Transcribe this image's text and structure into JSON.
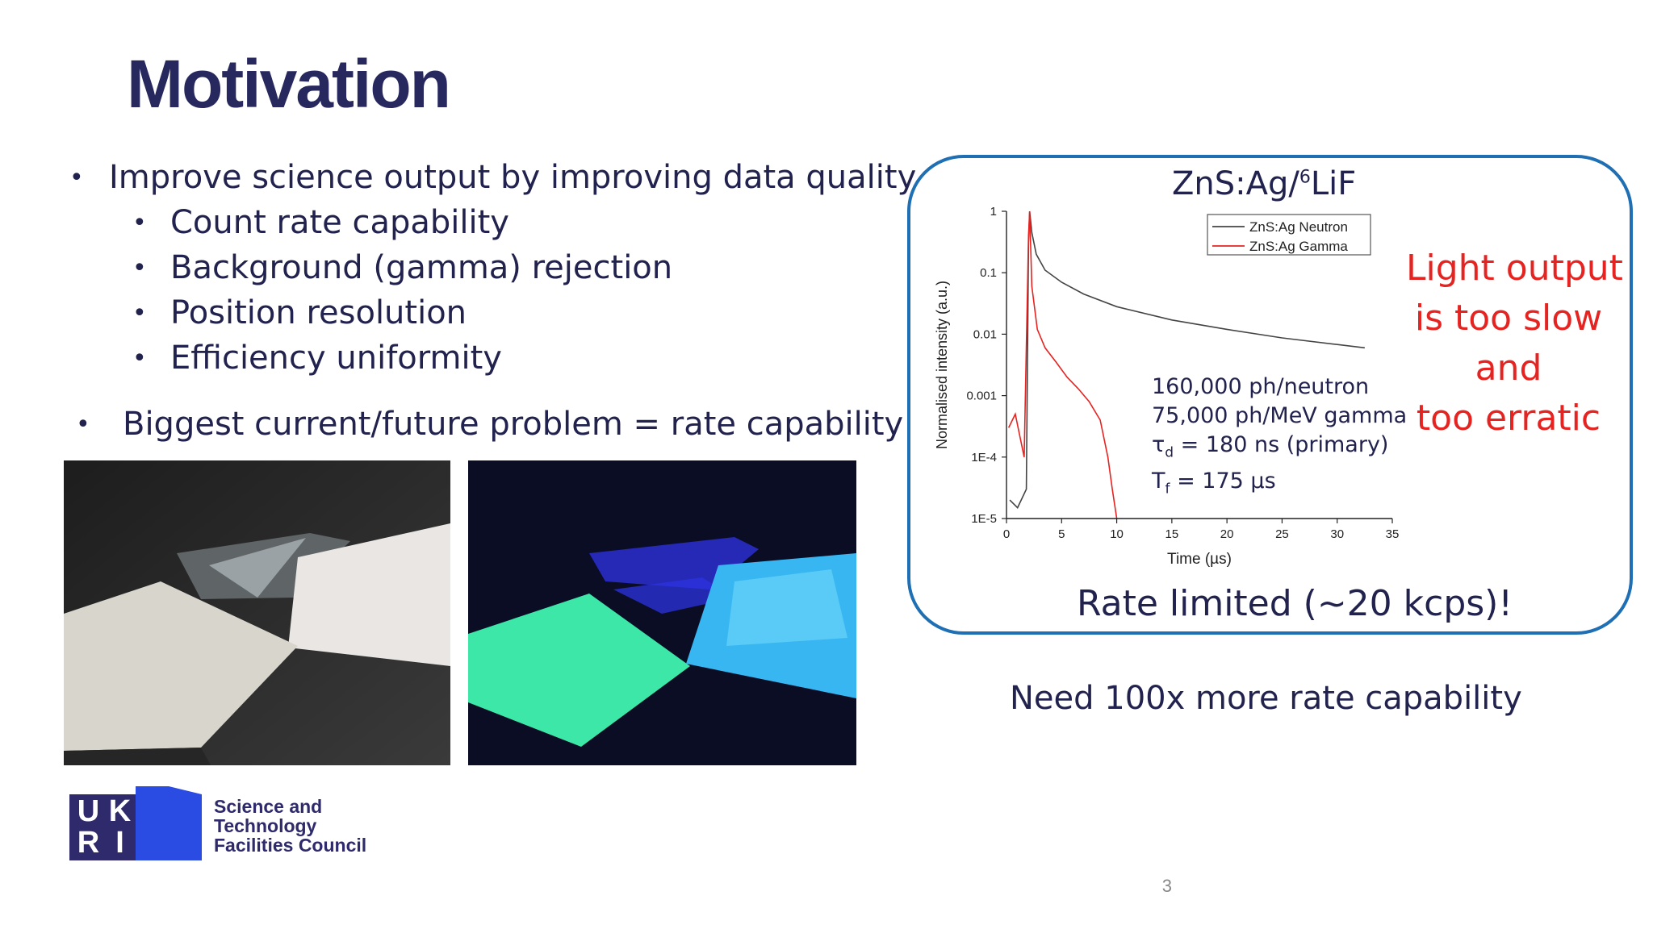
{
  "slide": {
    "title": "Motivation",
    "bullets": [
      "Improve science output by improving data quality",
      "Count rate capability",
      "Background (gamma) rejection",
      "Position resolution",
      "Efficiency uniformity",
      "Biggest current/future problem = rate capability"
    ],
    "bullet_glyph": "•",
    "chart_title": "ZnS:Ag/",
    "chart_title_sup": "6",
    "chart_title_suffix": "LiF",
    "annotation": {
      "line1": "160,000 ph/neutron",
      "line2": "75,000 ph/MeV gamma",
      "line3_sym": "τ",
      "line3_sub": "d",
      "line3_rest": " = 180 ns (primary)",
      "line4_sym": "T",
      "line4_sub": "f",
      "line4_rest": " = 175 µs"
    },
    "red_note": [
      "Light output",
      "is too slow",
      "and",
      "too erratic"
    ],
    "rate_limited": "Rate limited (~20 kcps)!",
    "need": "Need 100x more rate capability",
    "logo_letters": [
      "U",
      "K",
      "R",
      "I"
    ],
    "logo_text": [
      "Science and",
      "Technology",
      "Facilities Council"
    ],
    "page_number": "3",
    "colors": {
      "title": "#27285e",
      "text": "#22224e",
      "accent_red": "#e52421",
      "box_border": "#1f6fb4",
      "ukri_navy": "#2e2a6b",
      "ukri_blue": "#2b4ce2"
    }
  },
  "chart_data": {
    "type": "line",
    "xlabel": "Time (µs)",
    "ylabel": "Normalised intensity (a.u.)",
    "xlim": [
      0,
      35
    ],
    "ylim": [
      1e-05,
      1
    ],
    "yscale": "log",
    "x_ticks": [
      "0",
      "5",
      "10",
      "15",
      "20",
      "25",
      "30",
      "35"
    ],
    "y_ticks": [
      "1",
      "0.1",
      "0.01",
      "0.001",
      "1E-4",
      "1E-5"
    ],
    "legend_position": "top-right",
    "series": [
      {
        "name": "ZnS:Ag Neutron",
        "color": "#444444",
        "x": [
          0.3,
          1.0,
          1.8,
          2.0,
          2.1,
          2.3,
          2.7,
          3.5,
          5,
          7,
          10,
          15,
          20,
          25,
          30,
          32.5
        ],
        "y": [
          2e-05,
          1.5e-05,
          3e-05,
          0.3,
          1.0,
          0.45,
          0.2,
          0.11,
          0.07,
          0.045,
          0.028,
          0.017,
          0.012,
          0.0087,
          0.0068,
          0.006
        ]
      },
      {
        "name": "ZnS:Ag Gamma",
        "color": "#e52421",
        "x": [
          0.2,
          0.8,
          1.6,
          2.0,
          2.1,
          2.3,
          2.8,
          3.5,
          4.5,
          5.5,
          6.5,
          7.5,
          8.5,
          9.2,
          9.6,
          10.0
        ],
        "y": [
          0.0003,
          0.0005,
          0.0001,
          0.4,
          1.0,
          0.06,
          0.012,
          0.006,
          0.0035,
          0.002,
          0.0013,
          0.0008,
          0.0004,
          0.0001,
          3e-05,
          1e-05
        ]
      }
    ]
  }
}
